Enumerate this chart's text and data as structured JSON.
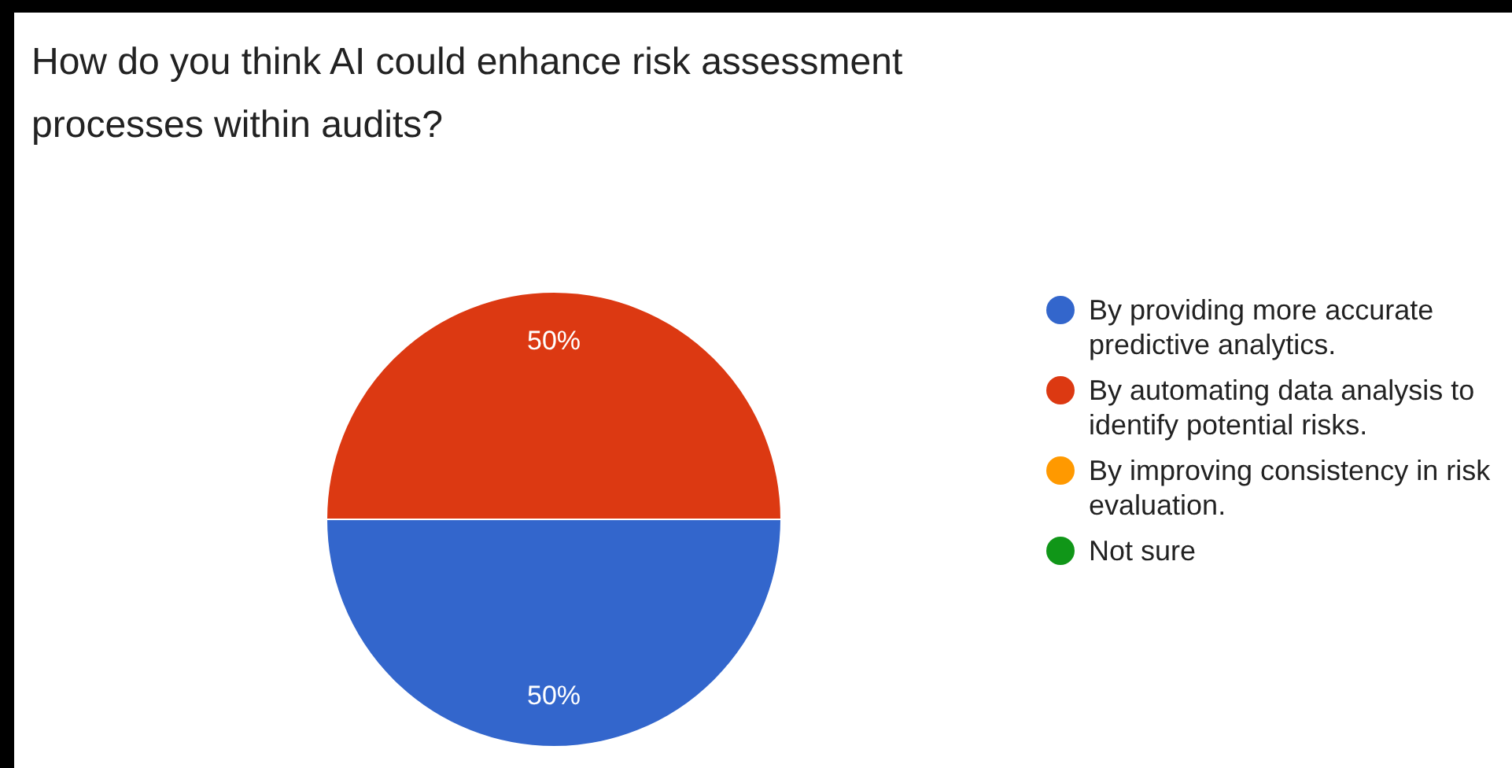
{
  "chart_data": {
    "type": "pie",
    "title": "How do you think AI could enhance risk assessment processes within audits?",
    "categories": [
      "By providing more accurate predictive analytics.",
      "By automating data analysis to identify potential risks.",
      "By improving consistency in risk evaluation.",
      "Not sure"
    ],
    "values": [
      50,
      50,
      0,
      0
    ],
    "colors": [
      "#3366cc",
      "#dc3912",
      "#ff9900",
      "#109618"
    ],
    "value_labels": [
      "50%",
      "50%",
      null,
      null
    ],
    "legend": "right"
  }
}
